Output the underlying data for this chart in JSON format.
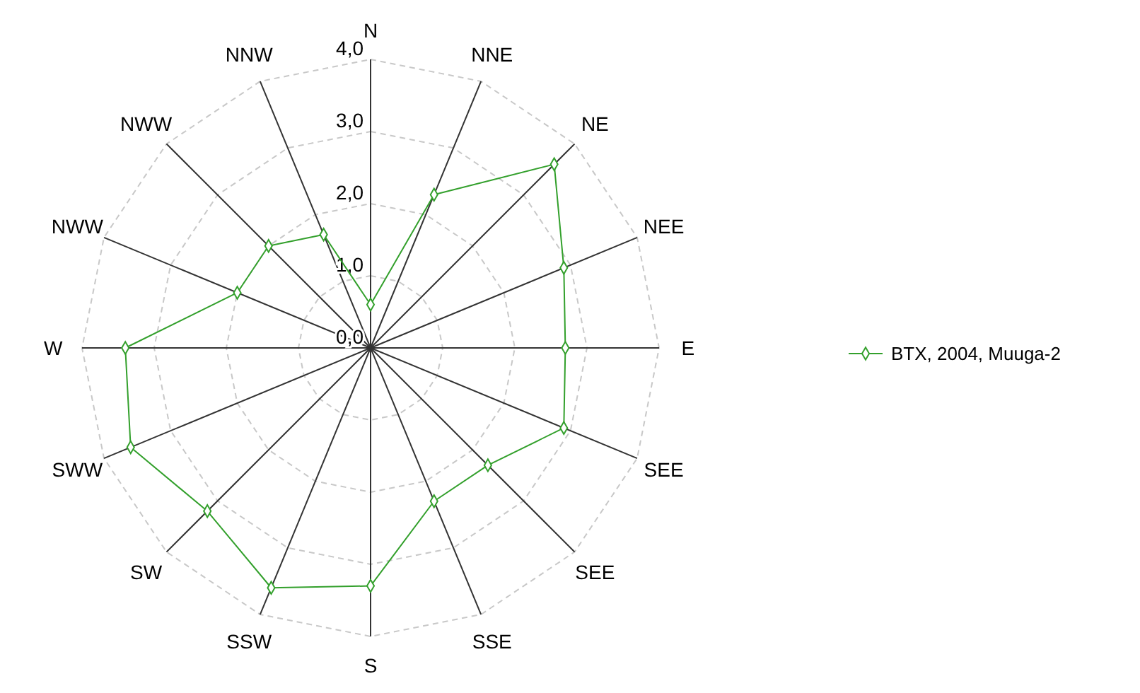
{
  "chart_data": {
    "type": "radar",
    "categories": [
      "N",
      "NNE",
      "NE",
      "NEE",
      "E",
      "SEE",
      "SEE",
      "SSE",
      "S",
      "SSW",
      "SW",
      "SWW",
      "W",
      "NWW",
      "NWW",
      "NNW"
    ],
    "series": [
      {
        "name": "BTX, 2004, Muuga-2",
        "color": "#33a02c",
        "values": [
          0.6,
          2.3,
          3.6,
          2.9,
          2.7,
          2.9,
          2.3,
          2.3,
          3.3,
          3.6,
          3.2,
          3.6,
          3.4,
          2.0,
          2.0,
          1.7
        ]
      }
    ],
    "ylim": [
      0,
      4
    ],
    "yticks": [
      {
        "value": 0,
        "label": "0,0"
      },
      {
        "value": 1,
        "label": "1,0"
      },
      {
        "value": 2,
        "label": "2,0"
      },
      {
        "value": 3,
        "label": "3,0"
      },
      {
        "value": 4,
        "label": "4,0"
      }
    ],
    "grid": true,
    "legend": "right",
    "marker": "diamond",
    "line_style": "solid"
  }
}
